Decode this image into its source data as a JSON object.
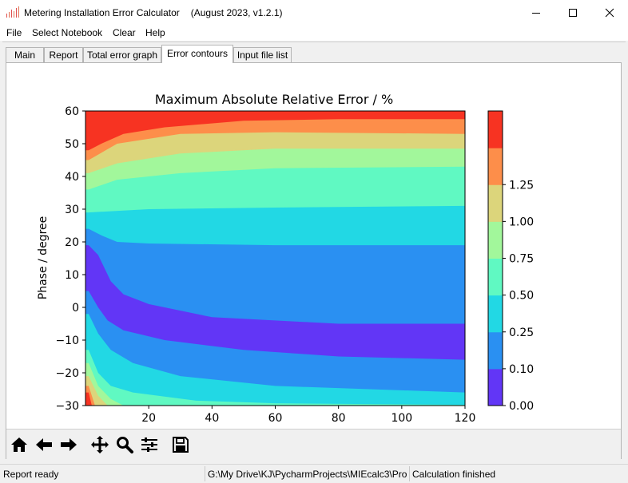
{
  "window": {
    "title": "Metering Installation Error Calculator",
    "version": "(August 2023, v1.2.1)"
  },
  "menu": [
    "File",
    "Select Notebook",
    "Clear",
    "Help"
  ],
  "tabs": [
    "Main",
    "Report",
    "Total error graph",
    "Error contours",
    "Input file list"
  ],
  "active_tab": "Error contours",
  "status": {
    "left": "Report ready",
    "middle": "G:\\My Drive\\KJ\\PycharmProjects\\MIEcalc3\\Pro",
    "right": "Calculation finished"
  },
  "colors": {
    "levels": [
      "#6236f6",
      "#2a90f2",
      "#22d8e4",
      "#60f9c2",
      "#a2f79b",
      "#dcd57b",
      "#fd8e4a",
      "#f73322"
    ]
  },
  "toolbar_icons": [
    "home-icon",
    "back-arrow-icon",
    "forward-arrow-icon",
    "pan-move-icon",
    "zoom-magnifier-icon",
    "configure-subplots-icon",
    "save-disk-icon"
  ],
  "chart_data": {
    "type": "contour",
    "title": "Maximum Absolute Relative Error / %",
    "xlabel": "",
    "ylabel": "Phase / degree",
    "xlim": [
      0,
      120
    ],
    "ylim": [
      -30,
      60
    ],
    "xticks": [
      "20",
      "40",
      "60",
      "80",
      "100",
      "120"
    ],
    "yticks": [
      "−30",
      "−20",
      "−10",
      "0",
      "10",
      "20",
      "30",
      "40",
      "50",
      "60"
    ],
    "colorbar_ticks": [
      "0.00",
      "0.10",
      "0.25",
      "0.50",
      "0.75",
      "1.00",
      "1.25"
    ],
    "levels": [
      0.0,
      0.1,
      0.25,
      0.5,
      0.75,
      1.0,
      1.25,
      1.5
    ],
    "boundaries": [
      {
        "level": 0.1,
        "above": [
          [
            1,
            19
          ],
          [
            4,
            16
          ],
          [
            8,
            8
          ],
          [
            12,
            4
          ],
          [
            20,
            1
          ],
          [
            40,
            -3
          ],
          [
            80,
            -5
          ],
          [
            120,
            -5
          ]
        ],
        "below": [
          [
            1,
            5
          ],
          [
            4,
            0
          ],
          [
            7,
            -4
          ],
          [
            12,
            -7
          ],
          [
            25,
            -10
          ],
          [
            50,
            -13
          ],
          [
            80,
            -15
          ],
          [
            120,
            -16
          ]
        ]
      },
      {
        "level": 0.25,
        "above": [
          [
            1,
            24
          ],
          [
            5,
            22
          ],
          [
            10,
            20
          ],
          [
            20,
            19.5
          ],
          [
            60,
            19
          ],
          [
            120,
            19
          ]
        ],
        "below": [
          [
            1,
            -2
          ],
          [
            4,
            -8
          ],
          [
            8,
            -13
          ],
          [
            15,
            -17
          ],
          [
            30,
            -21
          ],
          [
            60,
            -24
          ],
          [
            120,
            -26
          ]
        ]
      },
      {
        "level": 0.5,
        "above": [
          [
            1,
            29
          ],
          [
            20,
            30
          ],
          [
            60,
            30.5
          ],
          [
            120,
            31
          ]
        ],
        "below": [
          [
            1,
            -13
          ],
          [
            4,
            -20
          ],
          [
            8,
            -24
          ],
          [
            15,
            -26
          ],
          [
            35,
            -28.5
          ],
          [
            60,
            -29.3
          ],
          [
            120,
            -29.8
          ]
        ]
      },
      {
        "level": 0.75,
        "above": [
          [
            1,
            36
          ],
          [
            10,
            39
          ],
          [
            30,
            41
          ],
          [
            60,
            42.5
          ],
          [
            120,
            43
          ]
        ],
        "below": [
          [
            1,
            -17
          ],
          [
            4,
            -24
          ],
          [
            8,
            -28
          ],
          [
            12,
            -30
          ]
        ]
      },
      {
        "level": 1.0,
        "above": [
          [
            1,
            41
          ],
          [
            10,
            44
          ],
          [
            30,
            47
          ],
          [
            60,
            48.5
          ],
          [
            120,
            48.5
          ]
        ],
        "below": [
          [
            1,
            -21
          ],
          [
            4,
            -27
          ],
          [
            7,
            -30
          ]
        ]
      },
      {
        "level": 1.25,
        "above": [
          [
            1,
            45
          ],
          [
            10,
            50
          ],
          [
            30,
            53
          ],
          [
            60,
            53.5
          ],
          [
            120,
            53
          ]
        ],
        "below": [
          [
            1,
            -24
          ],
          [
            3,
            -30
          ]
        ]
      },
      {
        "level": 1.5,
        "above": [
          [
            1,
            48
          ],
          [
            5,
            50
          ],
          [
            12,
            53
          ],
          [
            25,
            55
          ],
          [
            50,
            57
          ],
          [
            80,
            57.5
          ],
          [
            120,
            57.5
          ]
        ],
        "below": [
          [
            1,
            -26
          ],
          [
            2,
            -30
          ]
        ]
      }
    ]
  }
}
